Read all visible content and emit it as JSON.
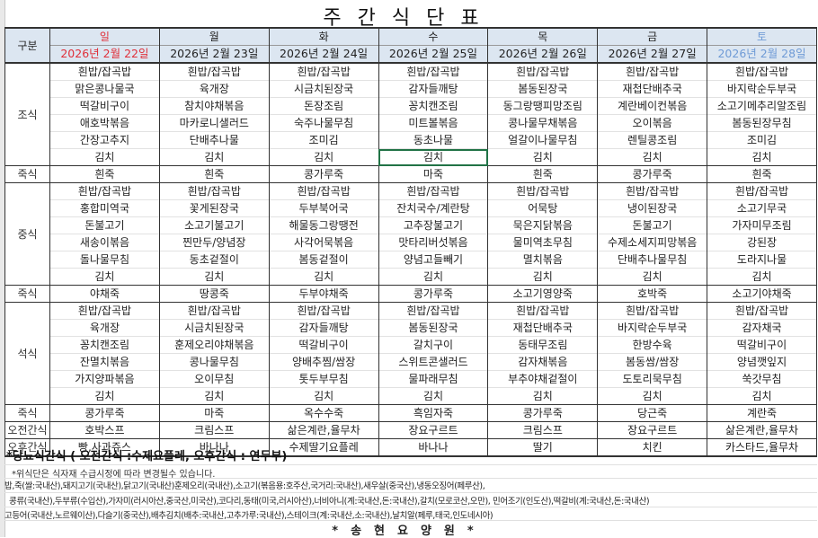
{
  "title": "주간식단표",
  "header": {
    "category_label": "구분"
  },
  "days": [
    {
      "name": "일",
      "date": "2026년 2월 22일"
    },
    {
      "name": "월",
      "date": "2026년 2월 23일"
    },
    {
      "name": "화",
      "date": "2026년 2월 24일"
    },
    {
      "name": "수",
      "date": "2026년 2월 25일"
    },
    {
      "name": "목",
      "date": "2026년 2월 26일"
    },
    {
      "name": "금",
      "date": "2026년 2월 27일"
    },
    {
      "name": "토",
      "date": "2026년 2월 28일"
    }
  ],
  "colors": {
    "sunday": "#e0303a",
    "saturday": "#6f9bd6",
    "header_bg": "#dce6f1",
    "selection": "#217346"
  },
  "meals": [
    {
      "label": "조식",
      "rows": [
        [
          "흰밥/잡곡밥",
          "흰밥/잡곡밥",
          "흰밥/잡곡밥",
          "흰밥/잡곡밥",
          "흰밥/잡곡밥",
          "흰밥/잡곡밥",
          "흰밥/잡곡밥"
        ],
        [
          "맑은콩나물국",
          "육개장",
          "시금치된장국",
          "감자들깨탕",
          "봄동된장국",
          "재첩단배추국",
          "바지락순두부국"
        ],
        [
          "떡갈비구이",
          "참치야채볶음",
          "돈장조림",
          "꽁치캔조림",
          "동그랑땡피망조림",
          "계란베이컨볶음",
          "소고기메추리알조림"
        ],
        [
          "애호박볶음",
          "마카로니샐러드",
          "숙주나물무침",
          "미트볼볶음",
          "콩나물무채볶음",
          "오이볶음",
          "봄동된장무침"
        ],
        [
          "간장고추지",
          "단배추나물",
          "조미김",
          "동초나물",
          "얼갈이나물무침",
          "렌틸콩조림",
          "조미김"
        ],
        [
          "김치",
          "김치",
          "김치",
          "김치",
          "김치",
          "김치",
          "김치"
        ]
      ]
    },
    {
      "label": "죽식",
      "rows": [
        [
          "흰죽",
          "흰죽",
          "콩가루죽",
          "마죽",
          "흰죽",
          "콩가루죽",
          "흰죽"
        ]
      ]
    },
    {
      "label": "중식",
      "rows": [
        [
          "흰밥/잡곡밥",
          "흰밥/잡곡밥",
          "흰밥/잡곡밥",
          "흰밥/잡곡밥",
          "흰밥/잡곡밥",
          "흰밥/잡곡밥",
          "흰밥/잡곡밥"
        ],
        [
          "홍합미역국",
          "꽃게된장국",
          "두부북어국",
          "잔치국수/계란탕",
          "어묵탕",
          "냉이된장국",
          "소고기무국"
        ],
        [
          "돈불고기",
          "소고기불고기",
          "해물동그랑땡전",
          "고추장불고기",
          "묵은지닭볶음",
          "돈불고기",
          "가자미무조림"
        ],
        [
          "새송이볶음",
          "찐만두/양념장",
          "사각어묵볶음",
          "맛타리버섯볶음",
          "물미역초무침",
          "수제소세지피망볶음",
          "강된장"
        ],
        [
          "돌나물무침",
          "동초겉절이",
          "봄동겉절이",
          "양념고들빼기",
          "멸치볶음",
          "단배추나물무침",
          "도라지나물"
        ],
        [
          "김치",
          "김치",
          "김치",
          "김치",
          "김치",
          "김치",
          "김치"
        ]
      ]
    },
    {
      "label": "죽식",
      "rows": [
        [
          "야채죽",
          "땅콩죽",
          "두부야채죽",
          "콩가루죽",
          "소고기영양죽",
          "호박죽",
          "소고기야채죽"
        ]
      ]
    },
    {
      "label": "석식",
      "rows": [
        [
          "흰밥/잡곡밥",
          "흰밥/잡곡밥",
          "흰밥/잡곡밥",
          "흰밥/잡곡밥",
          "흰밥/잡곡밥",
          "흰밥/잡곡밥",
          "흰밥/잡곡밥"
        ],
        [
          "육개장",
          "시금치된장국",
          "감자들깨탕",
          "봄동된장국",
          "재첩단배추국",
          "바지락순두부국",
          "감자채국"
        ],
        [
          "꽁치캔조림",
          "훈제오리야채볶음",
          "떡갈비구이",
          "갈치구이",
          "동태무조림",
          "한방수육",
          "떡갈비구이"
        ],
        [
          "잔멸치볶음",
          "콩나물무침",
          "양배추찜/쌈장",
          "스위트콘샐러드",
          "감자채볶음",
          "봄동쌈/쌈장",
          "양념깻잎지"
        ],
        [
          "가지양파볶음",
          "오이무침",
          "톳두부무침",
          "물파래무침",
          "부추야채겉절이",
          "도토리묵무침",
          "쑥갓무침"
        ],
        [
          "김치",
          "김치",
          "김치",
          "김치",
          "김치",
          "김치",
          "김치"
        ]
      ]
    },
    {
      "label": "죽식",
      "rows": [
        [
          "콩가루죽",
          "마죽",
          "옥수수죽",
          "흑임자죽",
          "콩가루죽",
          "당근죽",
          "계란죽"
        ]
      ]
    },
    {
      "label": "오전간식",
      "rows": [
        [
          "호박스프",
          "크림스프",
          "삶은계란,율무차",
          "장요구르트",
          "크림스프",
          "장요구르트",
          "삶은계란,율무차"
        ]
      ]
    },
    {
      "label": "오후간식",
      "rows": [
        [
          "빵,사과쥬스",
          "바나나",
          "수제딸기요플레",
          "바나나",
          "딸기",
          "치킨",
          "카스타드,율무차"
        ]
      ]
    }
  ],
  "notes": {
    "diabetic": "*당뇨식간식 ( 오전간식 :수제요플레, 오후간식 : 연두부)",
    "change_notice": "*위식단은 식자재 수급시정에 따라 변경될수 있습니다.",
    "origin_lines": [
      "밥,죽(쌀:국내산),돼지고기(국내산),닭고기(국내산)훈제오리(국내산),소고기(볶음용:호주산,국거리:국내산),새우살(중국산),냉동오징어(페루산),",
      "콩류(국내산),두부류(수입산),가자미(러시아산,중국산,미국산),코다리,동태(미국,러시아산),너비아니(계:국내산,돈:국내산),갈치(모로코산,오만), 민어조기(인도산),떡갈비(계:국내산,돈:국내산)",
      "고등어(국내산,노르웨이산),다슬기(중국산),배추김치(배추:국내산,고추가루:국내산),스테이크(계:국내산,소:국내산),날치알(페루,태국,인도네시아)"
    ]
  },
  "footer": "*송현요양원*"
}
